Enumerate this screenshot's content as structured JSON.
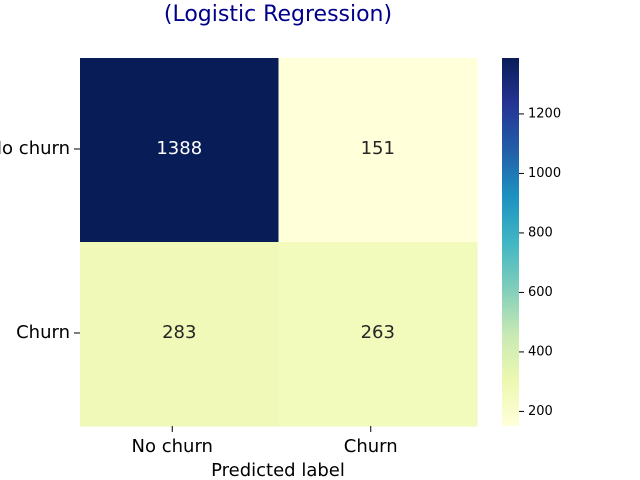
{
  "chart_data": {
    "type": "heatmap",
    "title": "(Logistic Regression)",
    "xlabel": "Predicted label",
    "ylabel": "",
    "row_labels": [
      "No churn",
      "Churn"
    ],
    "col_labels": [
      "No churn",
      "Churn"
    ],
    "values": [
      [
        1388,
        151
      ],
      [
        283,
        263
      ]
    ],
    "colormap": "YlGnBu",
    "colorbar": {
      "min": 151,
      "max": 1388,
      "ticks": [
        200,
        400,
        600,
        800,
        1000,
        1200
      ]
    },
    "colors": {
      "title": "#00008b",
      "text_on_dark": "#ffffff",
      "text_on_light": "#262626"
    }
  }
}
